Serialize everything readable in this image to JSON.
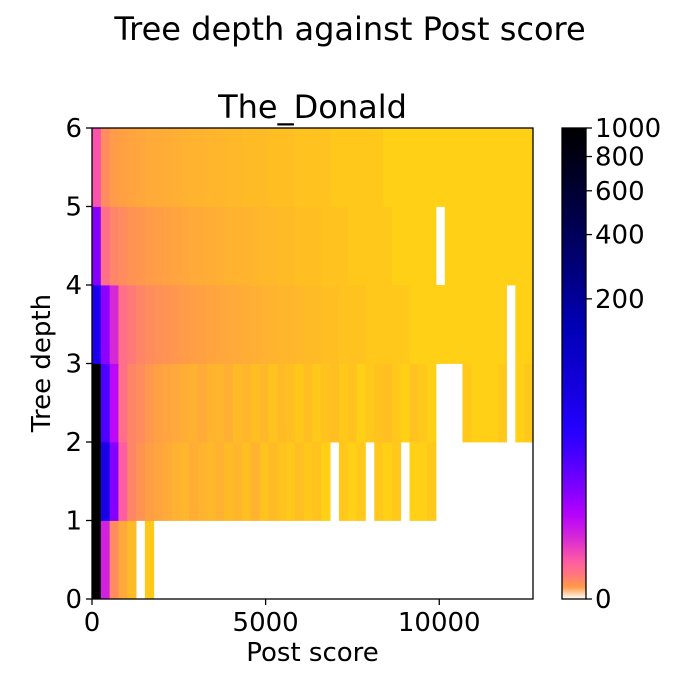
{
  "figure": {
    "suptitle": "Tree depth against Post score"
  },
  "chart_data": {
    "type": "heatmap",
    "title": "The_Donald",
    "xlabel": "Post score",
    "ylabel": "Tree depth",
    "xlim": [
      0,
      12700
    ],
    "ylim": [
      0,
      6
    ],
    "xticks": [
      0,
      5000,
      10000
    ],
    "xtick_labels": [
      "0",
      "5000",
      "10000"
    ],
    "yticks": [
      0,
      1,
      2,
      3,
      4,
      5,
      6
    ],
    "ytick_labels": [
      "0",
      "1",
      "2",
      "3",
      "4",
      "5",
      "6"
    ],
    "y_bins": [
      [
        0,
        1
      ],
      [
        1,
        2
      ],
      [
        2,
        3
      ],
      [
        3,
        4
      ],
      [
        4,
        5
      ],
      [
        5,
        6
      ]
    ],
    "x_bin_width": 254,
    "colormap": "gnuplot2_r",
    "color_scale": "power",
    "colorbar": {
      "range": [
        0,
        1000
      ],
      "ticks": [
        0,
        200,
        400,
        600,
        800,
        1000
      ],
      "tick_labels": [
        "0",
        "200",
        "400",
        "600",
        "800",
        "1000"
      ]
    },
    "notes_on_values": "Approximate counts read from colors; null = empty (white) bin",
    "rows": [
      {
        "depth_bin": "0-1",
        "values": [
          1000,
          140,
          35,
          15,
          6,
          null,
          3,
          null,
          null,
          null,
          null,
          null,
          null,
          null,
          null,
          null,
          null,
          null,
          null,
          null,
          null,
          null,
          null,
          null,
          null,
          null,
          null,
          null,
          null,
          null,
          null,
          null,
          null,
          null,
          null,
          null,
          null,
          null,
          null,
          null,
          null,
          null,
          null,
          null,
          null,
          null,
          null,
          null,
          null,
          null
        ]
      },
      {
        "depth_bin": "1-2",
        "values": [
          1000,
          420,
          230,
          80,
          40,
          30,
          22,
          18,
          14,
          10,
          8,
          12,
          9,
          7,
          10,
          6,
          8,
          5,
          9,
          4,
          6,
          4,
          3,
          5,
          3,
          4,
          2,
          null,
          3,
          2,
          3,
          null,
          3,
          2,
          3,
          null,
          2,
          2,
          3,
          null,
          null,
          null,
          null,
          null,
          null,
          null,
          null,
          null,
          null,
          null
        ]
      },
      {
        "depth_bin": "2-3",
        "values": [
          1000,
          300,
          170,
          60,
          40,
          35,
          28,
          20,
          18,
          15,
          12,
          10,
          14,
          9,
          8,
          11,
          6,
          8,
          5,
          7,
          4,
          6,
          5,
          3,
          5,
          3,
          4,
          5,
          3,
          4,
          2,
          3,
          4,
          5,
          3,
          2,
          4,
          3,
          2,
          null,
          null,
          null,
          3,
          2,
          2,
          2,
          3,
          null,
          2,
          3
        ]
      },
      {
        "depth_bin": "3-4",
        "values": [
          400,
          220,
          130,
          60,
          50,
          40,
          35,
          32,
          30,
          28,
          25,
          22,
          20,
          18,
          16,
          15,
          14,
          12,
          11,
          10,
          9,
          8,
          8,
          7,
          6,
          6,
          5,
          5,
          4,
          4,
          4,
          3,
          3,
          3,
          3,
          3,
          2,
          2,
          2,
          2,
          2,
          2,
          2,
          2,
          2,
          2,
          2,
          null,
          2,
          2
        ]
      },
      {
        "depth_bin": "4-5",
        "values": [
          230,
          60,
          40,
          35,
          30,
          28,
          25,
          22,
          20,
          18,
          16,
          14,
          13,
          12,
          11,
          10,
          9,
          9,
          8,
          7,
          7,
          6,
          6,
          5,
          5,
          5,
          4,
          4,
          4,
          3,
          3,
          3,
          3,
          3,
          2,
          2,
          2,
          2,
          2,
          null,
          2,
          2,
          2,
          2,
          2,
          2,
          2,
          2,
          2,
          2
        ]
      },
      {
        "depth_bin": "5-6",
        "values": [
          90,
          35,
          25,
          20,
          18,
          16,
          14,
          13,
          12,
          11,
          10,
          9,
          9,
          8,
          8,
          7,
          7,
          6,
          6,
          6,
          5,
          5,
          5,
          4,
          4,
          4,
          4,
          3,
          3,
          3,
          3,
          3,
          3,
          2,
          2,
          2,
          2,
          2,
          2,
          2,
          2,
          2,
          2,
          2,
          2,
          2,
          2,
          2,
          2,
          2
        ]
      }
    ]
  }
}
